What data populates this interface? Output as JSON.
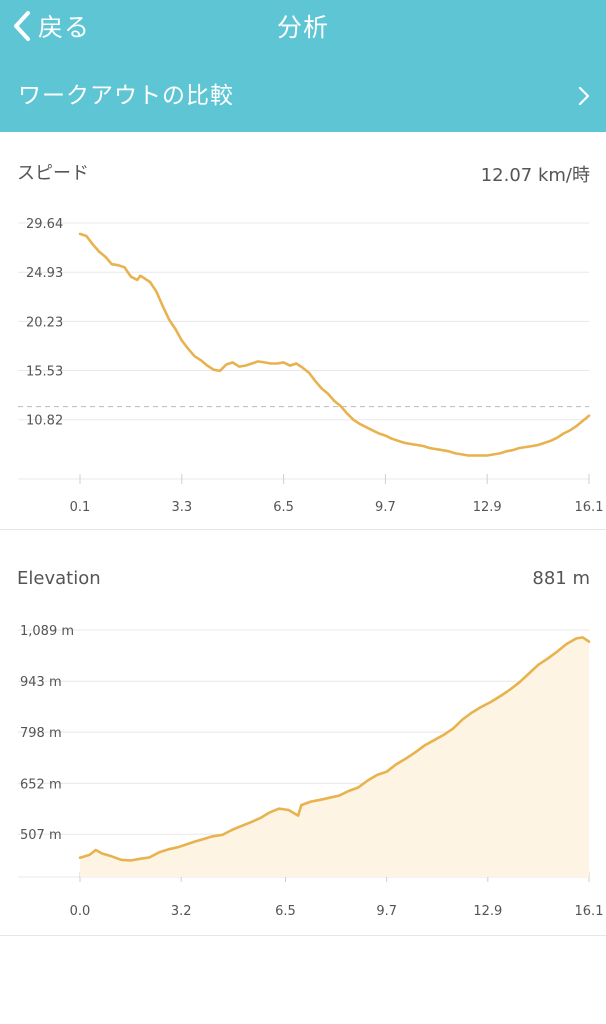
{
  "nav": {
    "back_label": "戻る",
    "title": "分析"
  },
  "compare": {
    "label": "ワークアウトの比較"
  },
  "icons": {
    "back": "chevron-left-icon",
    "compare": "chevron-right-icon"
  },
  "colors": {
    "header": "#5ec5d4",
    "line": "#e8b24e",
    "fill": "#fdf4e4",
    "grid": "#e8e8e8",
    "avg_line": "#bbbbbb"
  },
  "speed": {
    "title": "スピード",
    "value": "12.07 km/時",
    "chart_data": {
      "type": "line",
      "y_tick_labels": [
        "29.64",
        "24.93",
        "20.23",
        "15.53",
        "10.82"
      ],
      "y_ticks": [
        29.64,
        24.93,
        20.23,
        15.53,
        10.82
      ],
      "x_tick_labels": [
        "0.1",
        "3.3",
        "6.5",
        "9.7",
        "12.9",
        "16.1"
      ],
      "x_ticks": [
        0.1,
        3.3,
        6.5,
        9.7,
        12.9,
        16.1
      ],
      "xlim": [
        0.1,
        16.1
      ],
      "ylim": [
        6.2,
        29.64
      ],
      "average": 12.07,
      "x": [
        0.1,
        0.3,
        0.5,
        0.7,
        0.9,
        1.1,
        1.3,
        1.5,
        1.7,
        1.9,
        2.0,
        2.1,
        2.3,
        2.5,
        2.7,
        2.9,
        3.1,
        3.3,
        3.5,
        3.7,
        3.9,
        4.1,
        4.3,
        4.5,
        4.7,
        4.9,
        5.1,
        5.3,
        5.5,
        5.7,
        5.9,
        6.1,
        6.3,
        6.5,
        6.7,
        6.9,
        7.1,
        7.3,
        7.5,
        7.7,
        7.9,
        8.1,
        8.3,
        8.5,
        8.7,
        8.9,
        9.1,
        9.3,
        9.5,
        9.7,
        9.9,
        10.1,
        10.3,
        10.5,
        10.7,
        10.9,
        11.1,
        11.3,
        11.5,
        11.7,
        11.9,
        12.1,
        12.3,
        12.5,
        12.7,
        12.9,
        13.1,
        13.3,
        13.5,
        13.7,
        13.9,
        14.1,
        14.3,
        14.5,
        14.7,
        14.9,
        15.1,
        15.3,
        15.5,
        15.7,
        15.9,
        16.1
      ],
      "y": [
        28.6,
        28.4,
        27.6,
        26.9,
        26.4,
        25.7,
        25.6,
        25.4,
        24.5,
        24.2,
        24.6,
        24.4,
        24.0,
        23.1,
        21.7,
        20.4,
        19.5,
        18.4,
        17.6,
        16.9,
        16.5,
        16.0,
        15.6,
        15.5,
        16.1,
        16.3,
        15.9,
        16.0,
        16.2,
        16.4,
        16.3,
        16.2,
        16.2,
        16.3,
        16.0,
        16.2,
        15.8,
        15.3,
        14.5,
        13.8,
        13.3,
        12.6,
        12.1,
        11.4,
        10.8,
        10.4,
        10.1,
        9.8,
        9.5,
        9.3,
        9.0,
        8.8,
        8.6,
        8.5,
        8.4,
        8.3,
        8.1,
        8.0,
        7.9,
        7.8,
        7.6,
        7.5,
        7.4,
        7.4,
        7.4,
        7.4,
        7.5,
        7.6,
        7.8,
        7.9,
        8.1,
        8.2,
        8.3,
        8.4,
        8.6,
        8.8,
        9.1,
        9.5,
        9.8,
        10.2,
        10.7,
        11.2
      ]
    }
  },
  "elevation": {
    "title": "Elevation",
    "value": "881 m",
    "chart_data": {
      "type": "area",
      "y_tick_labels": [
        "1,089 m",
        "943 m",
        "798 m",
        "652 m",
        "507 m"
      ],
      "y_ticks": [
        1089,
        943,
        798,
        652,
        507
      ],
      "x_tick_labels": [
        "0.0",
        "3.2",
        "6.5",
        "9.7",
        "12.9",
        "16.1"
      ],
      "x_ticks": [
        0.0,
        3.2,
        6.5,
        9.7,
        12.9,
        16.1
      ],
      "xlim": [
        0.0,
        16.1
      ],
      "ylim": [
        385,
        1089
      ],
      "x": [
        0.0,
        0.3,
        0.5,
        0.7,
        1.0,
        1.3,
        1.6,
        1.9,
        2.2,
        2.5,
        2.8,
        3.1,
        3.4,
        3.6,
        3.9,
        4.2,
        4.5,
        4.8,
        5.1,
        5.4,
        5.7,
        6.0,
        6.3,
        6.6,
        6.9,
        7.0,
        7.3,
        7.6,
        7.9,
        8.2,
        8.5,
        8.8,
        9.1,
        9.4,
        9.7,
        10.0,
        10.3,
        10.6,
        10.9,
        11.2,
        11.5,
        11.8,
        12.1,
        12.4,
        12.7,
        13.0,
        13.3,
        13.6,
        13.9,
        14.2,
        14.5,
        14.8,
        15.1,
        15.4,
        15.7,
        15.9,
        16.1
      ],
      "y": [
        440,
        448,
        462,
        452,
        444,
        434,
        432,
        437,
        441,
        455,
        464,
        470,
        479,
        485,
        493,
        501,
        505,
        519,
        530,
        541,
        553,
        569,
        580,
        576,
        560,
        590,
        600,
        605,
        611,
        617,
        630,
        640,
        660,
        676,
        685,
        706,
        722,
        740,
        760,
        775,
        790,
        808,
        834,
        854,
        870,
        884,
        901,
        919,
        940,
        965,
        990,
        1008,
        1028,
        1050,
        1065,
        1068,
        1056
      ]
    }
  }
}
